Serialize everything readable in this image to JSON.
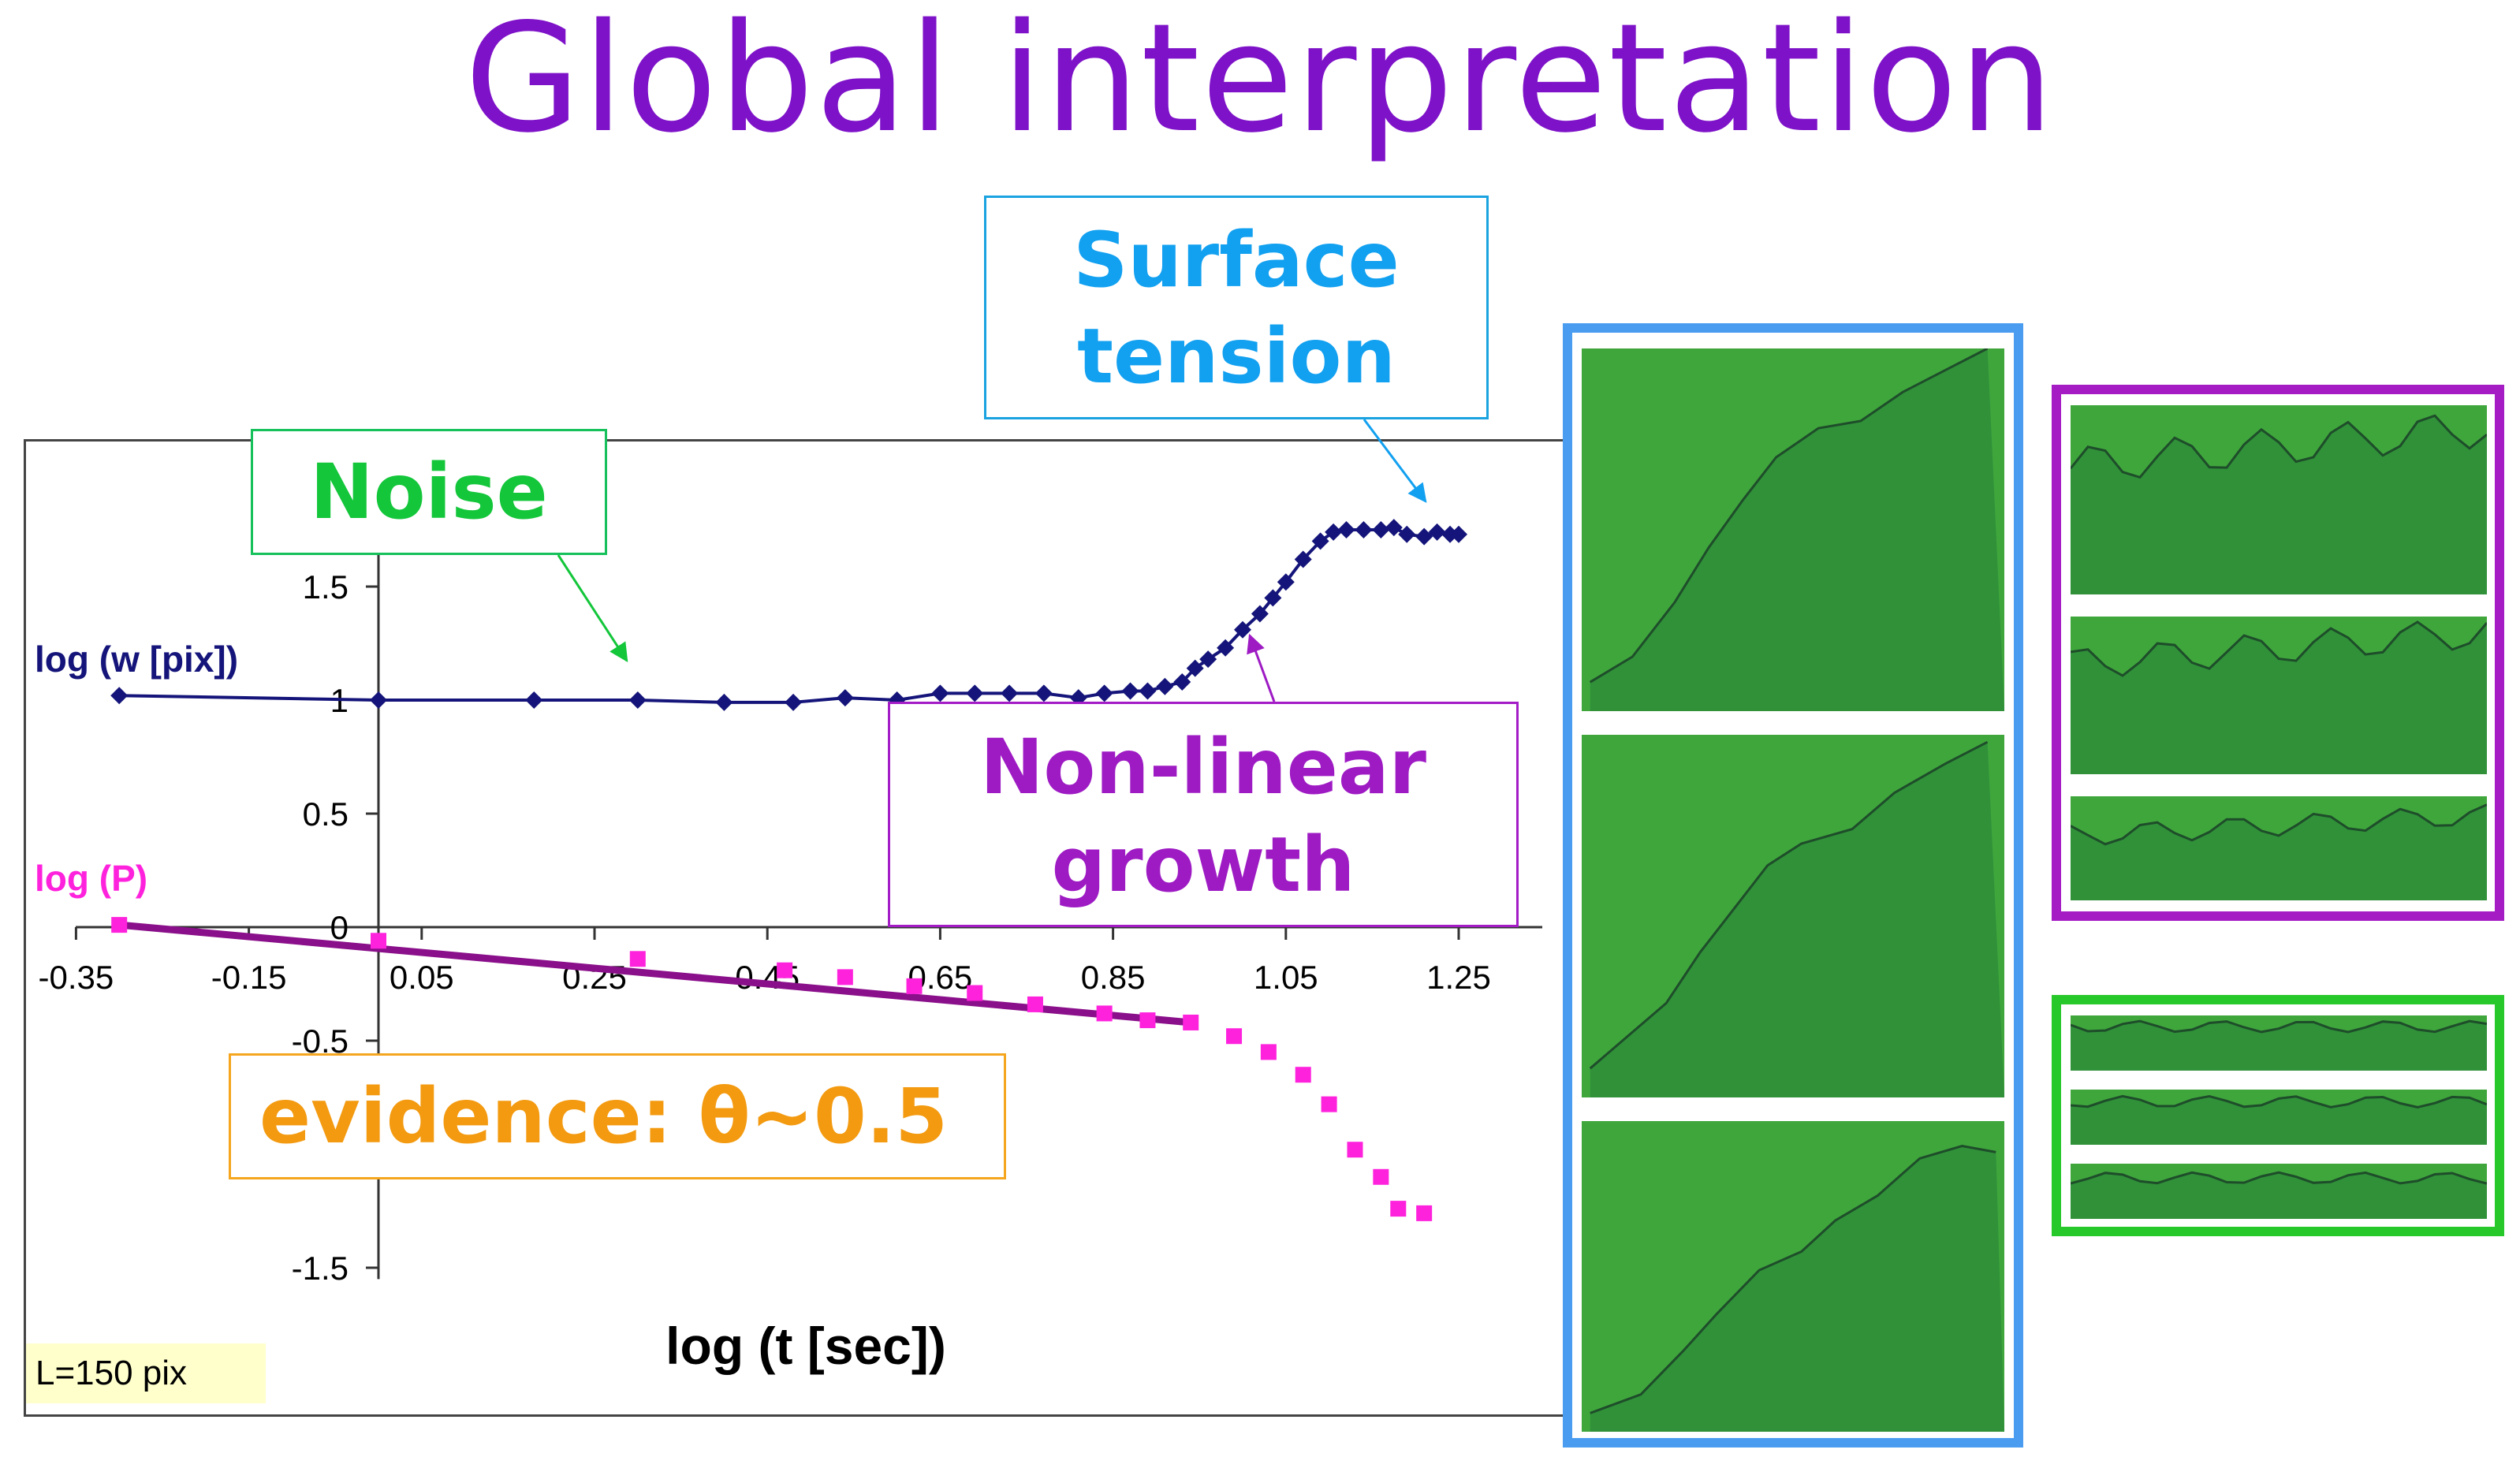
{
  "slide": {
    "title": "Global interpretation"
  },
  "annotations": {
    "noise": "Noise",
    "surface_tension_line1": "Surface",
    "surface_tension_line2": "tension",
    "nonlinear_line1": "Non-linear",
    "nonlinear_line2": "growth",
    "evidence": "evidence: θ~0.5",
    "system_size": "L=150 pix"
  },
  "colors": {
    "title": "#7e12c8",
    "series_w": "#14147a",
    "series_p": "#ff22dd",
    "fit_line": "#8a0f8a",
    "noise": "#13c63a",
    "surface_tension": "#12a0f0",
    "nonlinear": "#9e1bc4",
    "evidence": "#f39a10",
    "panel_green": "#3da83a"
  },
  "images": {
    "groups": [
      {
        "name": "blue-frame",
        "color": "#4a9cf0",
        "panels": 3
      },
      {
        "name": "purple-frame",
        "color": "#a51bc4",
        "panels": 3
      },
      {
        "name": "green-frame",
        "color": "#27c82a",
        "panels": 3
      }
    ]
  },
  "chart_data": {
    "type": "scatter",
    "title": "",
    "xlabel": "log (t [sec])",
    "ylabel": "",
    "xlim": [
      -0.35,
      1.25
    ],
    "ylim": [
      -1.5,
      2.0
    ],
    "grid": false,
    "x_ticks": [
      "-0.35",
      "-0.15",
      "0.05",
      "0.25",
      "0.45",
      "0.65",
      "0.85",
      "1.05",
      "1.25"
    ],
    "y_ticks": [
      "1.5",
      "1",
      "0.5",
      "0",
      "-0.5",
      "-1.5"
    ],
    "series": [
      {
        "name": "log (w [pix])",
        "marker": "diamond",
        "connected": true,
        "points": [
          [
            -0.3,
            1.02
          ],
          [
            0.0,
            1.0
          ],
          [
            0.18,
            1.0
          ],
          [
            0.3,
            1.0
          ],
          [
            0.4,
            0.99
          ],
          [
            0.48,
            0.99
          ],
          [
            0.54,
            1.01
          ],
          [
            0.6,
            1.0
          ],
          [
            0.65,
            1.03
          ],
          [
            0.69,
            1.03
          ],
          [
            0.73,
            1.03
          ],
          [
            0.77,
            1.03
          ],
          [
            0.81,
            1.01
          ],
          [
            0.84,
            1.03
          ],
          [
            0.87,
            1.04
          ],
          [
            0.89,
            1.04
          ],
          [
            0.91,
            1.06
          ],
          [
            0.93,
            1.08
          ],
          [
            0.945,
            1.14
          ],
          [
            0.96,
            1.18
          ],
          [
            0.98,
            1.23
          ],
          [
            1.0,
            1.31
          ],
          [
            1.02,
            1.38
          ],
          [
            1.035,
            1.45
          ],
          [
            1.05,
            1.52
          ],
          [
            1.07,
            1.62
          ],
          [
            1.09,
            1.7
          ],
          [
            1.105,
            1.74
          ],
          [
            1.12,
            1.75
          ],
          [
            1.14,
            1.75
          ],
          [
            1.16,
            1.75
          ],
          [
            1.175,
            1.76
          ],
          [
            1.19,
            1.73
          ],
          [
            1.21,
            1.72
          ],
          [
            1.225,
            1.74
          ],
          [
            1.24,
            1.73
          ],
          [
            1.25,
            1.73
          ]
        ]
      },
      {
        "name": "log (P)",
        "marker": "square",
        "connected": false,
        "points": [
          [
            -0.3,
            0.01
          ],
          [
            0.0,
            -0.06
          ],
          [
            0.3,
            -0.14
          ],
          [
            0.47,
            -0.19
          ],
          [
            0.54,
            -0.22
          ],
          [
            0.62,
            -0.26
          ],
          [
            0.69,
            -0.29
          ],
          [
            0.76,
            -0.34
          ],
          [
            0.84,
            -0.38
          ],
          [
            0.89,
            -0.41
          ],
          [
            0.94,
            -0.42
          ],
          [
            0.99,
            -0.48
          ],
          [
            1.03,
            -0.55
          ],
          [
            1.07,
            -0.65
          ],
          [
            1.1,
            -0.78
          ],
          [
            1.13,
            -0.98
          ],
          [
            1.16,
            -1.1
          ],
          [
            1.18,
            -1.24
          ],
          [
            1.21,
            -1.26
          ]
        ]
      }
    ],
    "fit_line": {
      "label": "θ~0.5",
      "from": [
        -0.3,
        0.01
      ],
      "to": [
        0.94,
        -0.42
      ]
    }
  }
}
